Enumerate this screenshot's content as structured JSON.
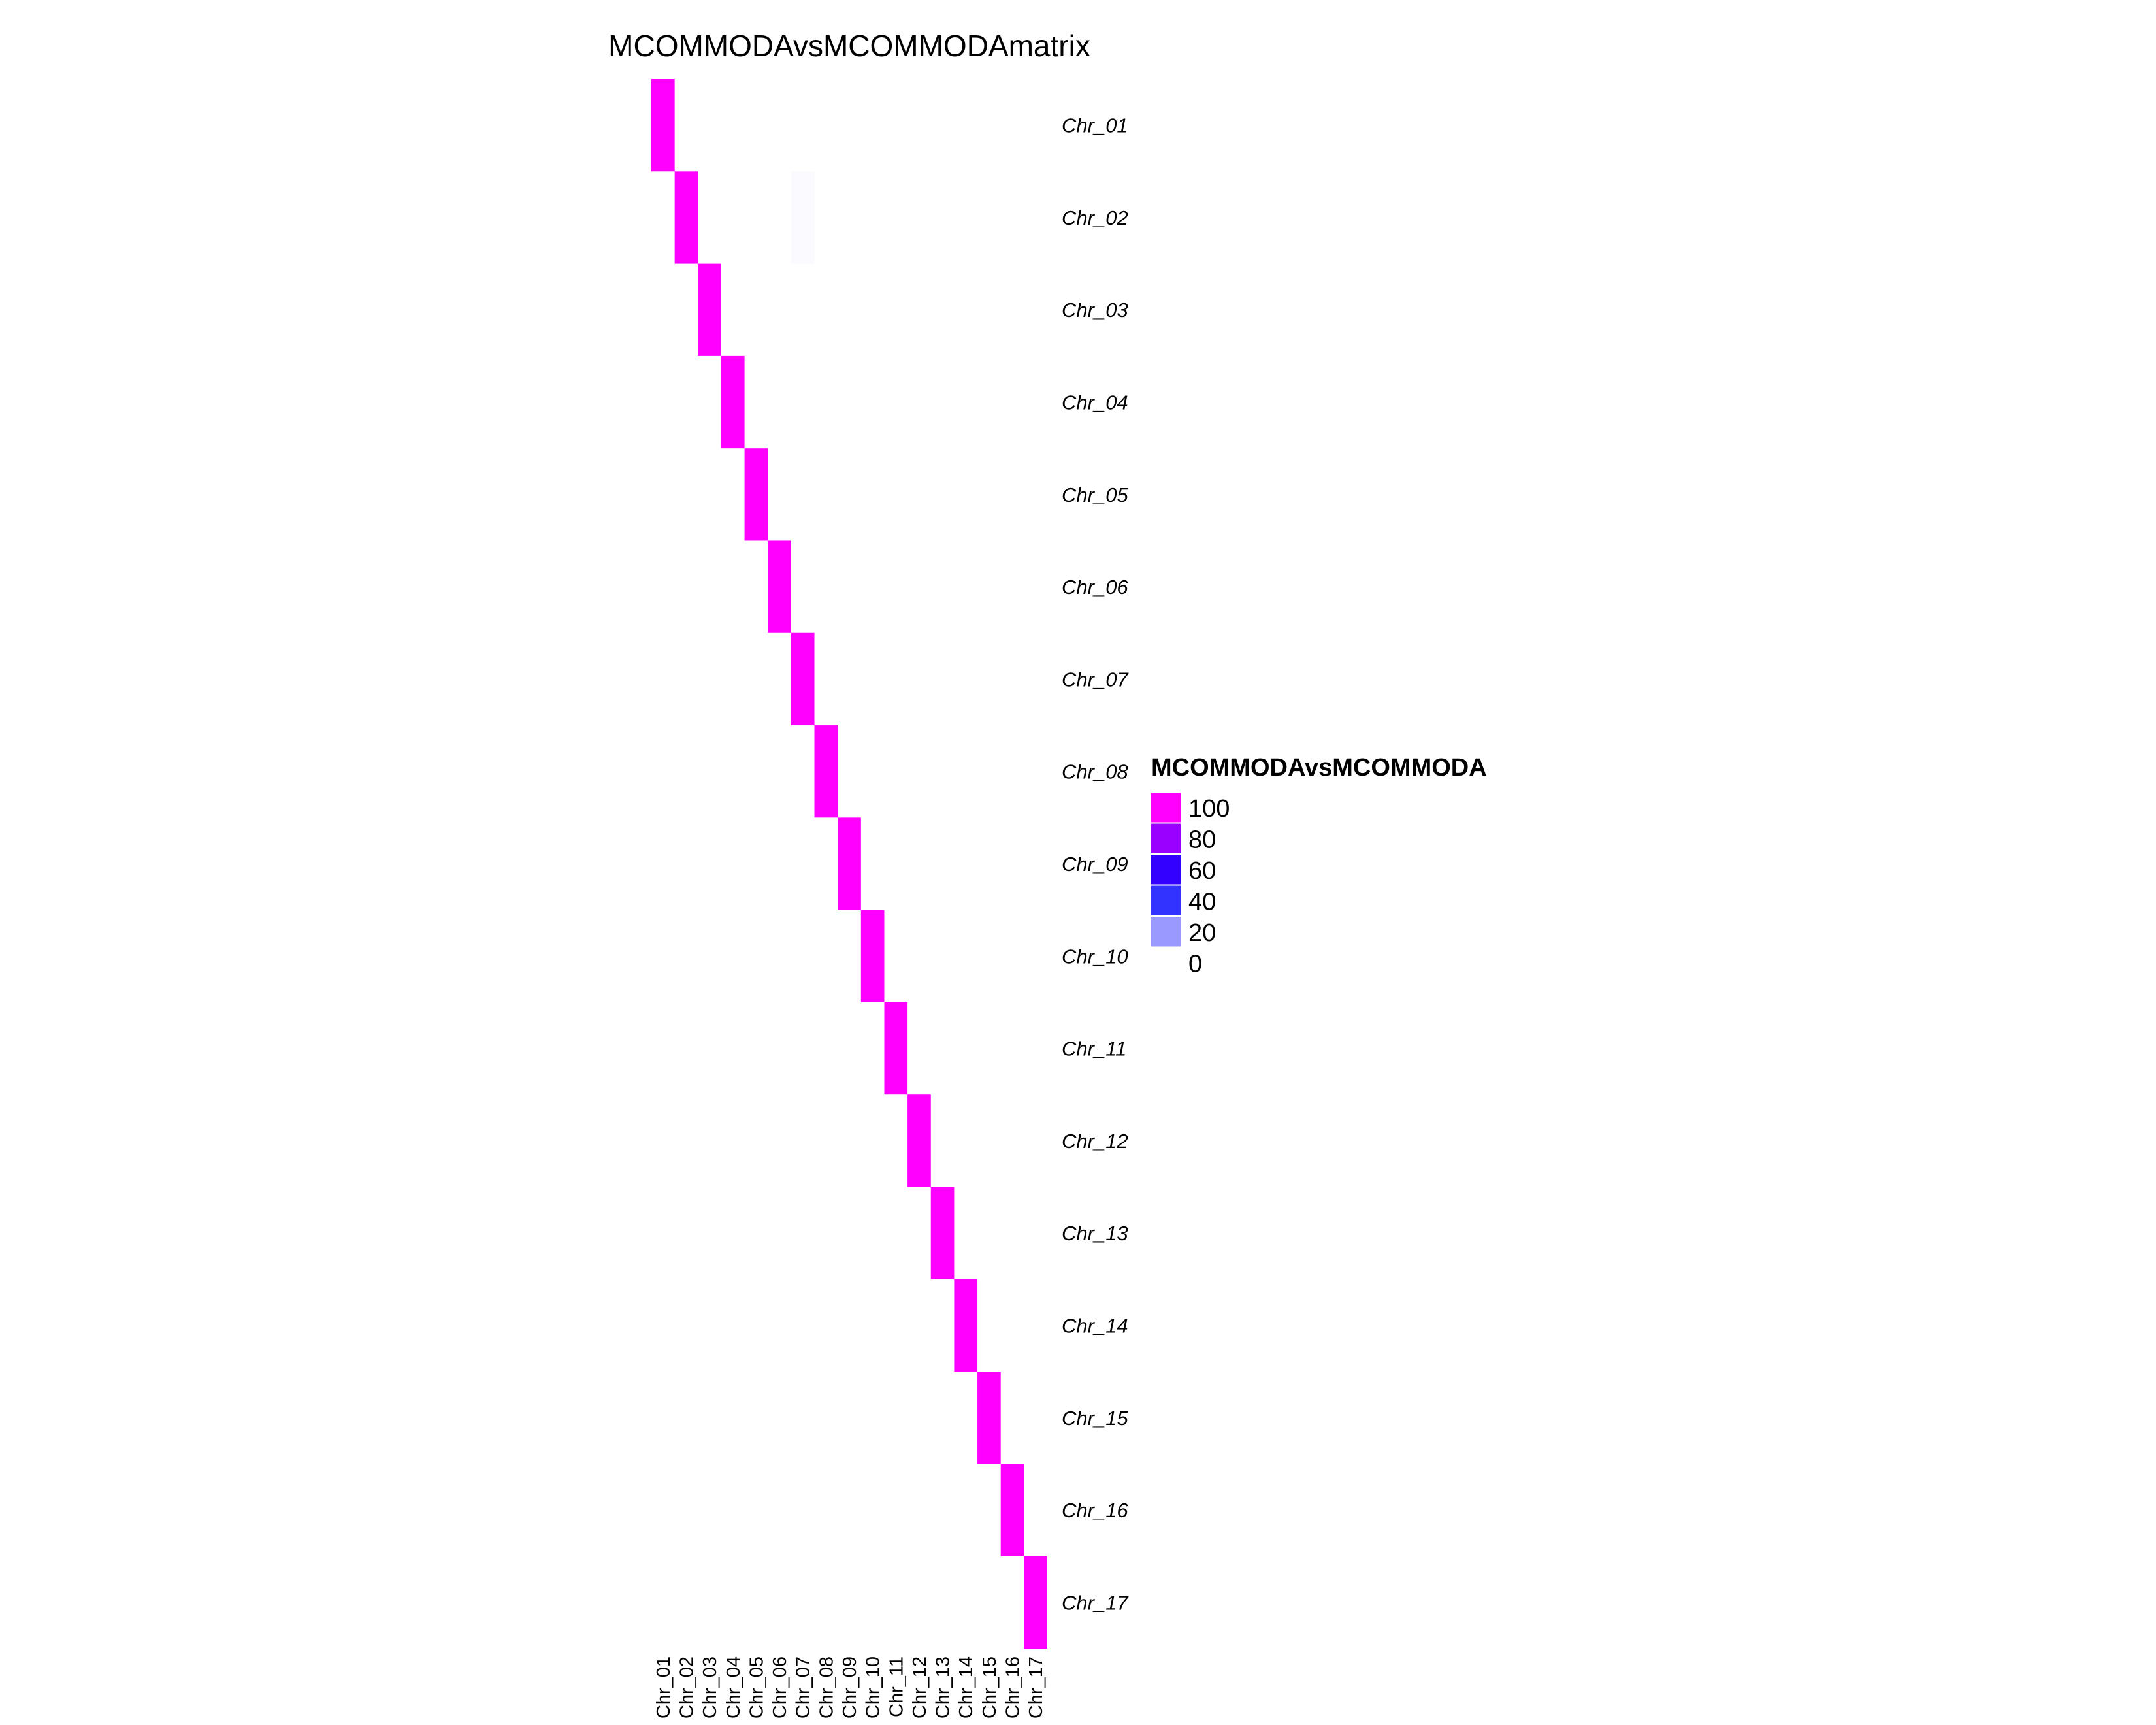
{
  "chart_data": {
    "type": "heatmap",
    "title": "MCOMMODAvsMCOMMODAmatrix",
    "rows": [
      "Chr_01",
      "Chr_02",
      "Chr_03",
      "Chr_04",
      "Chr_05",
      "Chr_06",
      "Chr_07",
      "Chr_08",
      "Chr_09",
      "Chr_10",
      "Chr_11",
      "Chr_12",
      "Chr_13",
      "Chr_14",
      "Chr_15",
      "Chr_16",
      "Chr_17"
    ],
    "columns": [
      "Chr_01",
      "Chr_02",
      "Chr_03",
      "Chr_04",
      "Chr_05",
      "Chr_06",
      "Chr_07",
      "Chr_08",
      "Chr_09",
      "Chr_10",
      "Chr_11",
      "Chr_12",
      "Chr_13",
      "Chr_14",
      "Chr_15",
      "Chr_16",
      "Chr_17"
    ],
    "values": [
      [
        100,
        0,
        0,
        0,
        0,
        0,
        0,
        0,
        0,
        0,
        0,
        0,
        0,
        0,
        0,
        0,
        0
      ],
      [
        0,
        100,
        0,
        0,
        0,
        0,
        1,
        0,
        0,
        0,
        0,
        0,
        0,
        0,
        0,
        0,
        0
      ],
      [
        0,
        0,
        100,
        0,
        0,
        0,
        0,
        0,
        0,
        0,
        0,
        0,
        0,
        0,
        0,
        0,
        0
      ],
      [
        0,
        0,
        0,
        100,
        0,
        0,
        0,
        0,
        0,
        0,
        0,
        0,
        0,
        0,
        0,
        0,
        0
      ],
      [
        0,
        0,
        0,
        0,
        100,
        0,
        0,
        0,
        0,
        0,
        0,
        0,
        0,
        0,
        0,
        0,
        0
      ],
      [
        0,
        0,
        0,
        0,
        0,
        100,
        0,
        0,
        0,
        0,
        0,
        0,
        0,
        0,
        0,
        0,
        0
      ],
      [
        0,
        0,
        0,
        0,
        0,
        0,
        100,
        0,
        0,
        0,
        0,
        0,
        0,
        0,
        0,
        0,
        0
      ],
      [
        0,
        0,
        0,
        0,
        0,
        0,
        0,
        100,
        0,
        0,
        0,
        0,
        0,
        0,
        0,
        0,
        0
      ],
      [
        0,
        0,
        0,
        0,
        0,
        0,
        0,
        0,
        100,
        0,
        0,
        0,
        0,
        0,
        0,
        0,
        0
      ],
      [
        0,
        0,
        0,
        0,
        0,
        0,
        0,
        0,
        0,
        100,
        0,
        0,
        0,
        0,
        0,
        0,
        0
      ],
      [
        0,
        0,
        0,
        0,
        0,
        0,
        0,
        0,
        0,
        0,
        100,
        0,
        0,
        0,
        0,
        0,
        0
      ],
      [
        0,
        0,
        0,
        0,
        0,
        0,
        0,
        0,
        0,
        0,
        0,
        100,
        0,
        0,
        0,
        0,
        0
      ],
      [
        0,
        0,
        0,
        0,
        0,
        0,
        0,
        0,
        0,
        0,
        0,
        0,
        100,
        0,
        0,
        0,
        0
      ],
      [
        0,
        0,
        0,
        0,
        0,
        0,
        0,
        0,
        0,
        0,
        0,
        0,
        0,
        100,
        0,
        0,
        0
      ],
      [
        0,
        0,
        0,
        0,
        0,
        0,
        0,
        0,
        0,
        0,
        0,
        0,
        0,
        0,
        100,
        0,
        0
      ],
      [
        0,
        0,
        0,
        0,
        0,
        0,
        0,
        0,
        0,
        0,
        0,
        0,
        0,
        0,
        0,
        100,
        0
      ],
      [
        0,
        0,
        0,
        0,
        0,
        0,
        0,
        0,
        0,
        0,
        0,
        0,
        0,
        0,
        0,
        0,
        100
      ]
    ],
    "legend": {
      "title": "MCOMMODAvsMCOMMODA",
      "placement": "right",
      "ticks": [
        100,
        80,
        60,
        40,
        20,
        0
      ],
      "colors": [
        "#ff00ff",
        "#9a00ff",
        "#3300ff",
        "#3333ff",
        "#9999ff",
        "#ffffff"
      ]
    },
    "value_range": [
      0,
      100
    ]
  }
}
